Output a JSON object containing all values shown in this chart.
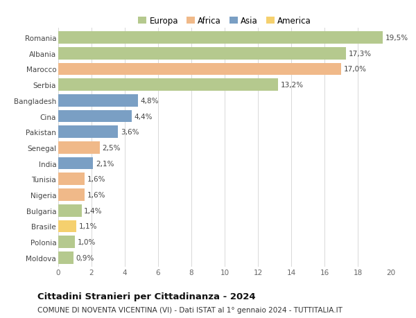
{
  "countries": [
    "Romania",
    "Albania",
    "Marocco",
    "Serbia",
    "Bangladesh",
    "Cina",
    "Pakistan",
    "Senegal",
    "India",
    "Tunisia",
    "Nigeria",
    "Bulgaria",
    "Brasile",
    "Polonia",
    "Moldova"
  ],
  "values": [
    19.5,
    17.3,
    17.0,
    13.2,
    4.8,
    4.4,
    3.6,
    2.5,
    2.1,
    1.6,
    1.6,
    1.4,
    1.1,
    1.0,
    0.9
  ],
  "labels": [
    "19,5%",
    "17,3%",
    "17,0%",
    "13,2%",
    "4,8%",
    "4,4%",
    "3,6%",
    "2,5%",
    "2,1%",
    "1,6%",
    "1,6%",
    "1,4%",
    "1,1%",
    "1,0%",
    "0,9%"
  ],
  "continents": [
    "Europa",
    "Europa",
    "Africa",
    "Europa",
    "Asia",
    "Asia",
    "Asia",
    "Africa",
    "Asia",
    "Africa",
    "Africa",
    "Europa",
    "America",
    "Europa",
    "Europa"
  ],
  "colors": {
    "Europa": "#b5c98e",
    "Africa": "#f0b989",
    "Asia": "#7a9fc4",
    "America": "#f5d06e"
  },
  "legend_order": [
    "Europa",
    "Africa",
    "Asia",
    "America"
  ],
  "xlim": [
    0,
    20
  ],
  "xticks": [
    0,
    2,
    4,
    6,
    8,
    10,
    12,
    14,
    16,
    18,
    20
  ],
  "title": "Cittadini Stranieri per Cittadinanza - 2024",
  "subtitle": "COMUNE DI NOVENTA VICENTINA (VI) - Dati ISTAT al 1° gennaio 2024 - TUTTITALIA.IT",
  "background_color": "#ffffff",
  "grid_color": "#d8d8d8",
  "bar_height": 0.78,
  "title_fontsize": 9.5,
  "subtitle_fontsize": 7.5,
  "label_fontsize": 7.5,
  "tick_fontsize": 7.5,
  "legend_fontsize": 8.5
}
